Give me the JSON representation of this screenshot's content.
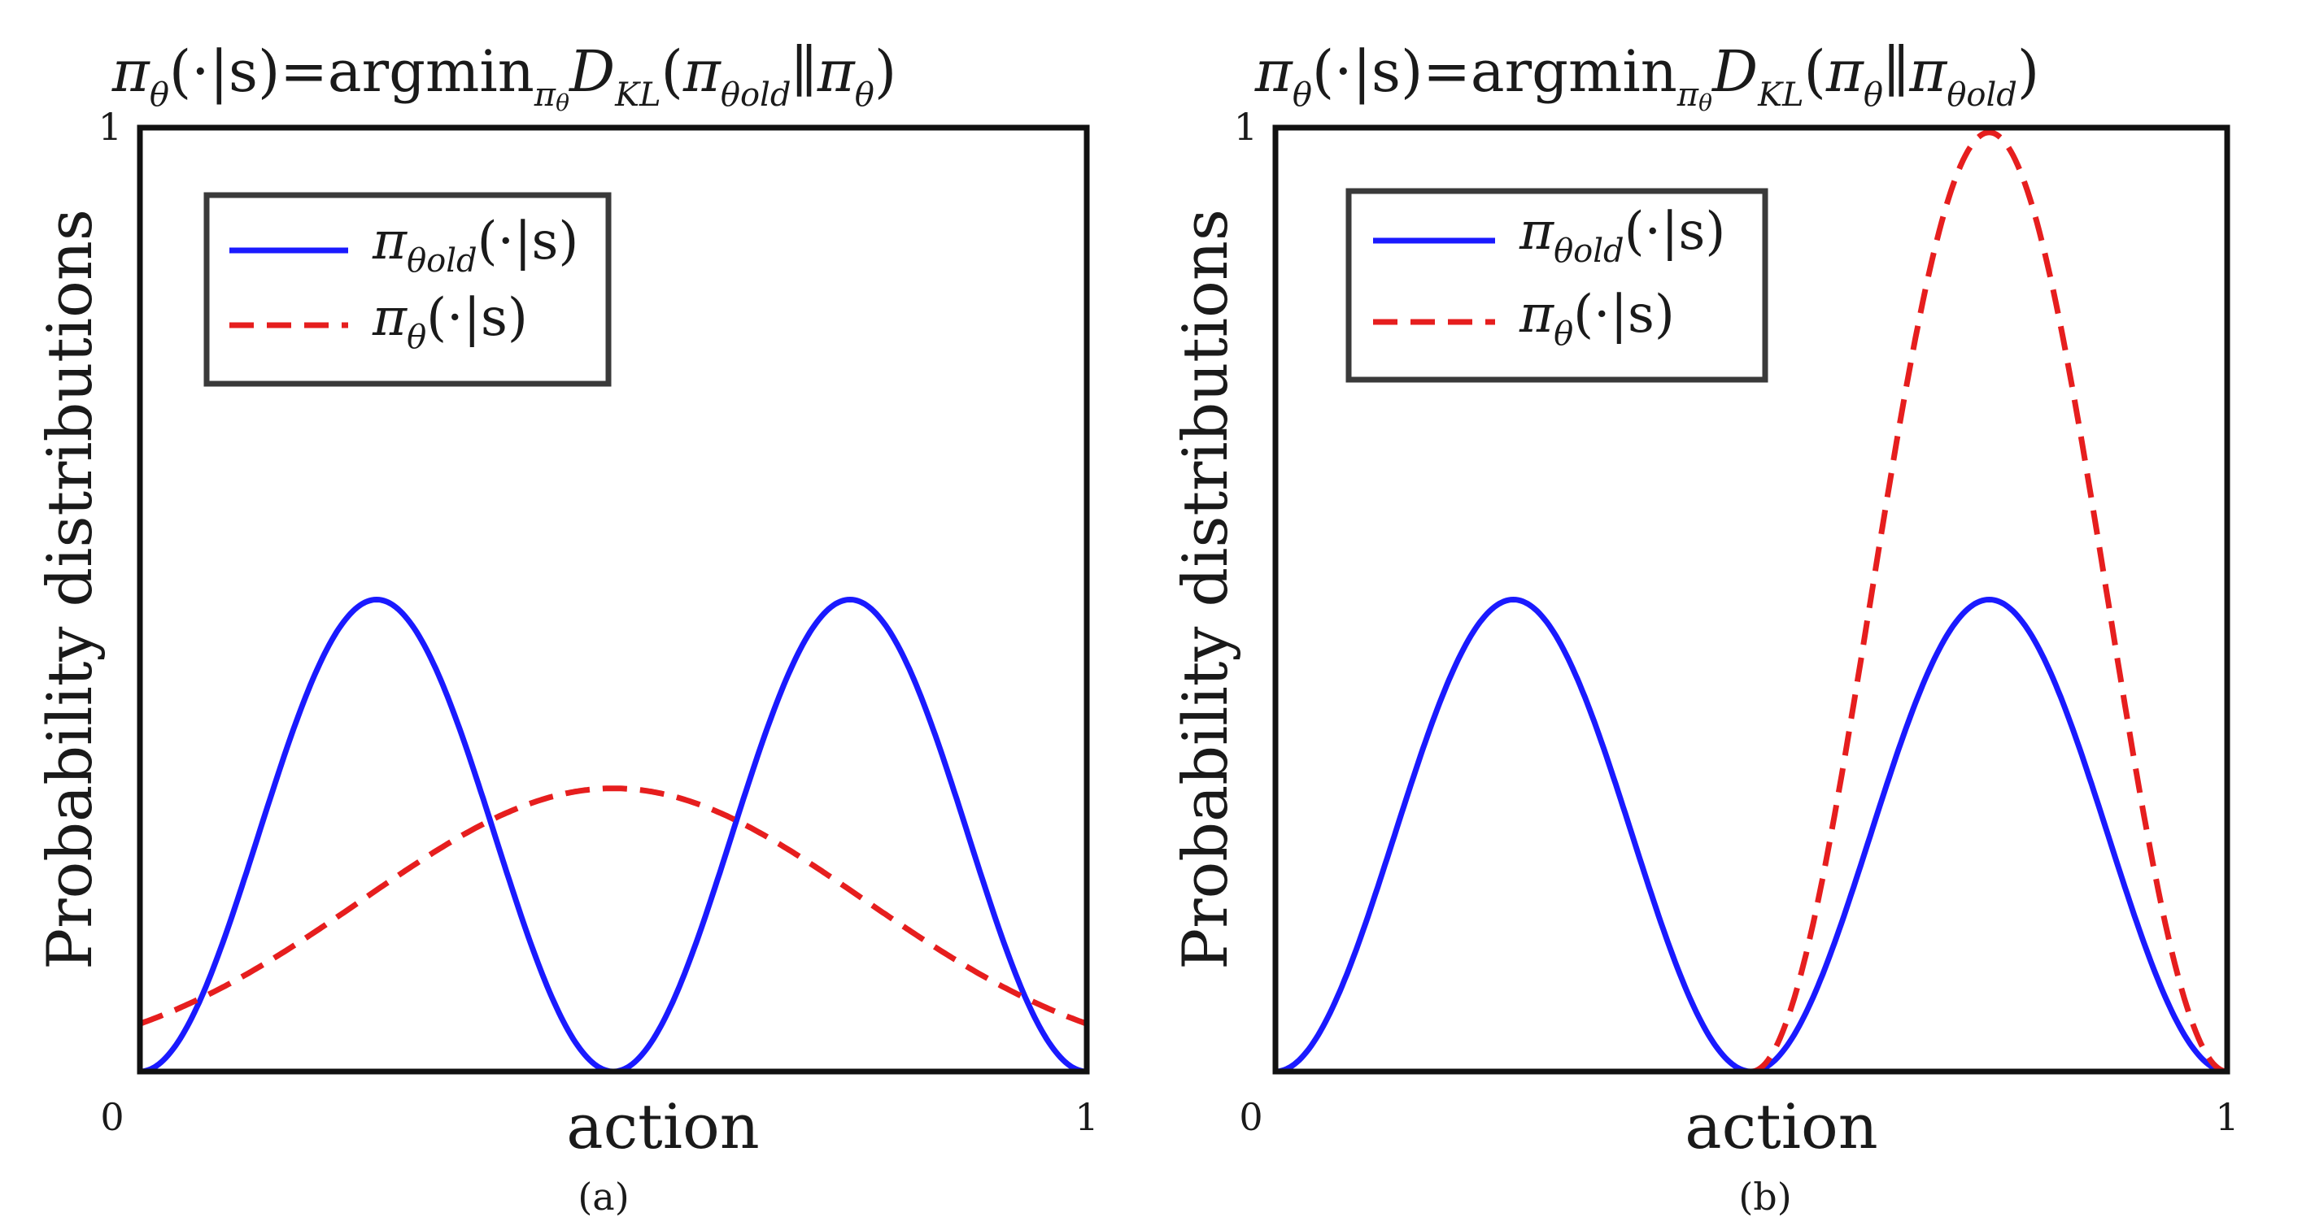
{
  "chart_data": [
    {
      "type": "line",
      "panel_label": "(a)",
      "title": {
        "pi": "π",
        "theta_sub": "θ",
        "cond": "(·|s)=argmin",
        "argmin_sub": "π",
        "argmin_sub_theta": "θ",
        "D": "D",
        "KL_sub": "KL",
        "open": "(",
        "arg1": "π",
        "arg1_sub": "θold",
        "sep": "∥",
        "arg2": "π",
        "arg2_sub": "θ",
        "close": ")"
      },
      "xlabel": "action",
      "ylabel": "Probability distributions",
      "xlim": [
        0,
        1
      ],
      "ylim": [
        0,
        1
      ],
      "x_ticks": [
        "0",
        "1"
      ],
      "y_ticks": [
        "1"
      ],
      "legend_position": "top-left",
      "legend": [
        {
          "symbol": "π",
          "sub": "θold",
          "text": "(·|s)"
        },
        {
          "symbol": "π",
          "sub": "θ",
          "text": "(·|s)"
        }
      ],
      "series": [
        {
          "name": "pi_theta_old",
          "style": "solid",
          "color": "#1a1aff",
          "model": "bimodal",
          "peaks": [
            0.25,
            0.75
          ],
          "peak_value": 0.5
        },
        {
          "name": "pi_theta",
          "style": "dashed",
          "color": "#e61e1e",
          "model": "gaussian",
          "mean": 0.5,
          "sigma": 0.265,
          "peak_value": 0.3
        }
      ]
    },
    {
      "type": "line",
      "panel_label": "(b)",
      "title": {
        "pi": "π",
        "theta_sub": "θ",
        "cond": "(·|s)=argmin",
        "argmin_sub": "π",
        "argmin_sub_theta": "θ",
        "D": "D",
        "KL_sub": "KL",
        "open": "(",
        "arg1": "π",
        "arg1_sub": "θ",
        "sep": "∥",
        "arg2": "π",
        "arg2_sub": "θold",
        "close": ")"
      },
      "xlabel": "action",
      "ylabel": "Probability distributions",
      "xlim": [
        0,
        1
      ],
      "ylim": [
        0,
        1
      ],
      "x_ticks": [
        "0",
        "1"
      ],
      "y_ticks": [
        "1"
      ],
      "legend_position": "top-left",
      "legend": [
        {
          "symbol": "π",
          "sub": "θold",
          "text": "(·|s)"
        },
        {
          "symbol": "π",
          "sub": "θ",
          "text": "(·|s)"
        }
      ],
      "series": [
        {
          "name": "pi_theta_old",
          "style": "solid",
          "color": "#1a1aff",
          "model": "bimodal",
          "peaks": [
            0.25,
            0.75
          ],
          "peak_value": 0.5
        },
        {
          "name": "pi_theta",
          "style": "dashed",
          "color": "#e61e1e",
          "model": "hann",
          "range": [
            0.5,
            1.0
          ],
          "peak_value": 0.995
        }
      ]
    }
  ]
}
